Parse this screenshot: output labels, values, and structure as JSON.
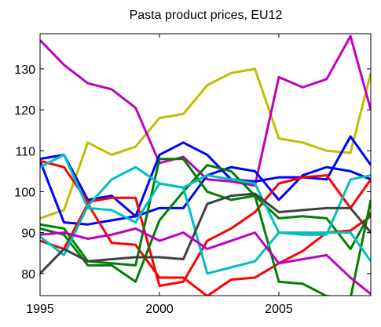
{
  "chart_data": {
    "type": "line",
    "title": "Pasta product prices, EU12",
    "x": [
      1995,
      1996,
      1997,
      1998,
      1999,
      2000,
      2001,
      2002,
      2003,
      2004,
      2005,
      2006,
      2007,
      2008,
      2008.85
    ],
    "xlim": [
      1995,
      2008.85
    ],
    "xticks": [
      1995,
      2000,
      2005
    ],
    "ylim": [
      74.6,
      138.6
    ],
    "yticks": [
      80,
      90,
      100,
      110,
      120,
      130
    ],
    "series": [
      {
        "color": "#bfbf00",
        "values": [
          93.5,
          95.5,
          112,
          109,
          111,
          118,
          119,
          126,
          129,
          130,
          113,
          112,
          110,
          109.5,
          129
        ]
      },
      {
        "color": "#bf00bf",
        "values": [
          137,
          131,
          126.5,
          125,
          120.5,
          107,
          108.5,
          103,
          102.5,
          101.5,
          128,
          125.5,
          127.5,
          138,
          120
        ]
      },
      {
        "color": "#0000ff",
        "values": [
          108,
          109,
          98,
          99,
          94,
          109,
          112,
          109,
          103,
          102.5,
          103.5,
          103.5,
          103,
          113.5,
          106.5
        ]
      },
      {
        "color": "#0000ff",
        "values": [
          107.5,
          92.5,
          92,
          93,
          94,
          96,
          96,
          104,
          106,
          105,
          98,
          104,
          106,
          105,
          103
        ]
      },
      {
        "color": "#ff0000",
        "values": [
          107.5,
          106,
          97.5,
          98.5,
          98.5,
          77,
          78,
          88,
          91,
          95,
          102,
          103.5,
          104,
          96,
          103
        ]
      },
      {
        "color": "#ff0000",
        "values": [
          88,
          86,
          97,
          87.5,
          87,
          79,
          79,
          74.5,
          78.5,
          79,
          82.5,
          85.5,
          90,
          90.5,
          94
        ]
      },
      {
        "color": "#008000",
        "values": [
          92,
          91,
          83,
          82.5,
          82,
          108,
          108,
          100,
          98,
          99,
          93.5,
          94,
          93.5,
          86,
          95
        ]
      },
      {
        "color": "#008000",
        "values": [
          91,
          89.5,
          82,
          82,
          78,
          93,
          100,
          106.5,
          105,
          99,
          78,
          77.5,
          74.5,
          74,
          98
        ]
      },
      {
        "color": "#00bfbf",
        "values": [
          106,
          109,
          96,
          95.5,
          92.5,
          102,
          101,
          104,
          103,
          102,
          90,
          90,
          90,
          90,
          83
        ]
      },
      {
        "color": "#00bfbf",
        "values": [
          89,
          84.5,
          96.5,
          103,
          106,
          102,
          101,
          80,
          81.5,
          83,
          90,
          89.5,
          89.5,
          103,
          104
        ]
      },
      {
        "color": "#404040",
        "values": [
          80,
          86,
          83,
          83.5,
          84,
          84,
          83.5,
          97,
          99,
          99.5,
          95,
          95.5,
          96,
          96,
          90
        ]
      },
      {
        "color": "#bf00bf",
        "values": [
          89.5,
          90,
          88.5,
          89.5,
          91,
          88,
          90,
          86,
          88,
          90,
          82.5,
          83.5,
          84.5,
          79,
          75
        ]
      }
    ]
  }
}
